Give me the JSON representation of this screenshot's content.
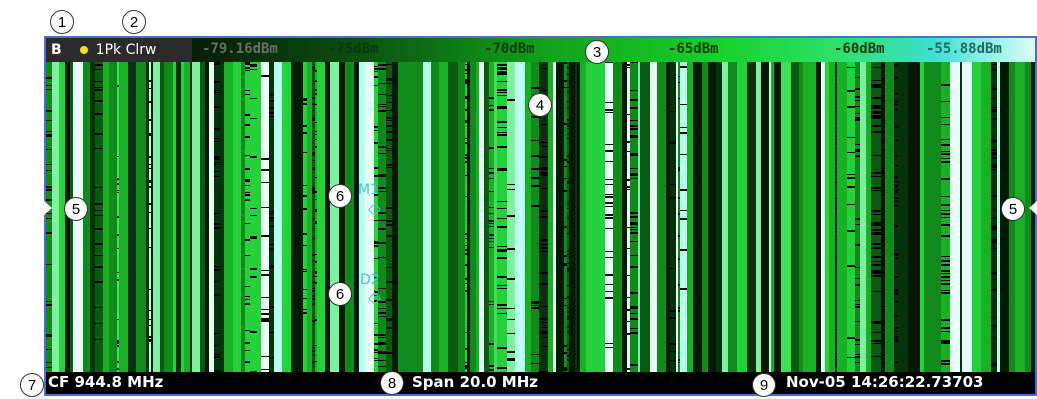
{
  "window": {
    "letter": "B",
    "trace": "1Pk Clrw",
    "trace_dot_color": "#f2df1e"
  },
  "scale": {
    "labels": [
      "-79.16dBm",
      "-75dBm",
      "-70dBm",
      "-65dBm",
      "-60dBm",
      "-55.88dBm"
    ]
  },
  "markers": [
    {
      "label": "M1"
    },
    {
      "label": "D2"
    }
  ],
  "footer": {
    "center_freq": "CF 944.8 MHz",
    "span": "Span 20.0 MHz",
    "timestamp": "Nov-05 14:26:22.73703"
  },
  "callouts": [
    "1",
    "2",
    "3",
    "4",
    "5",
    "5",
    "6",
    "6",
    "7",
    "8",
    "9"
  ]
}
